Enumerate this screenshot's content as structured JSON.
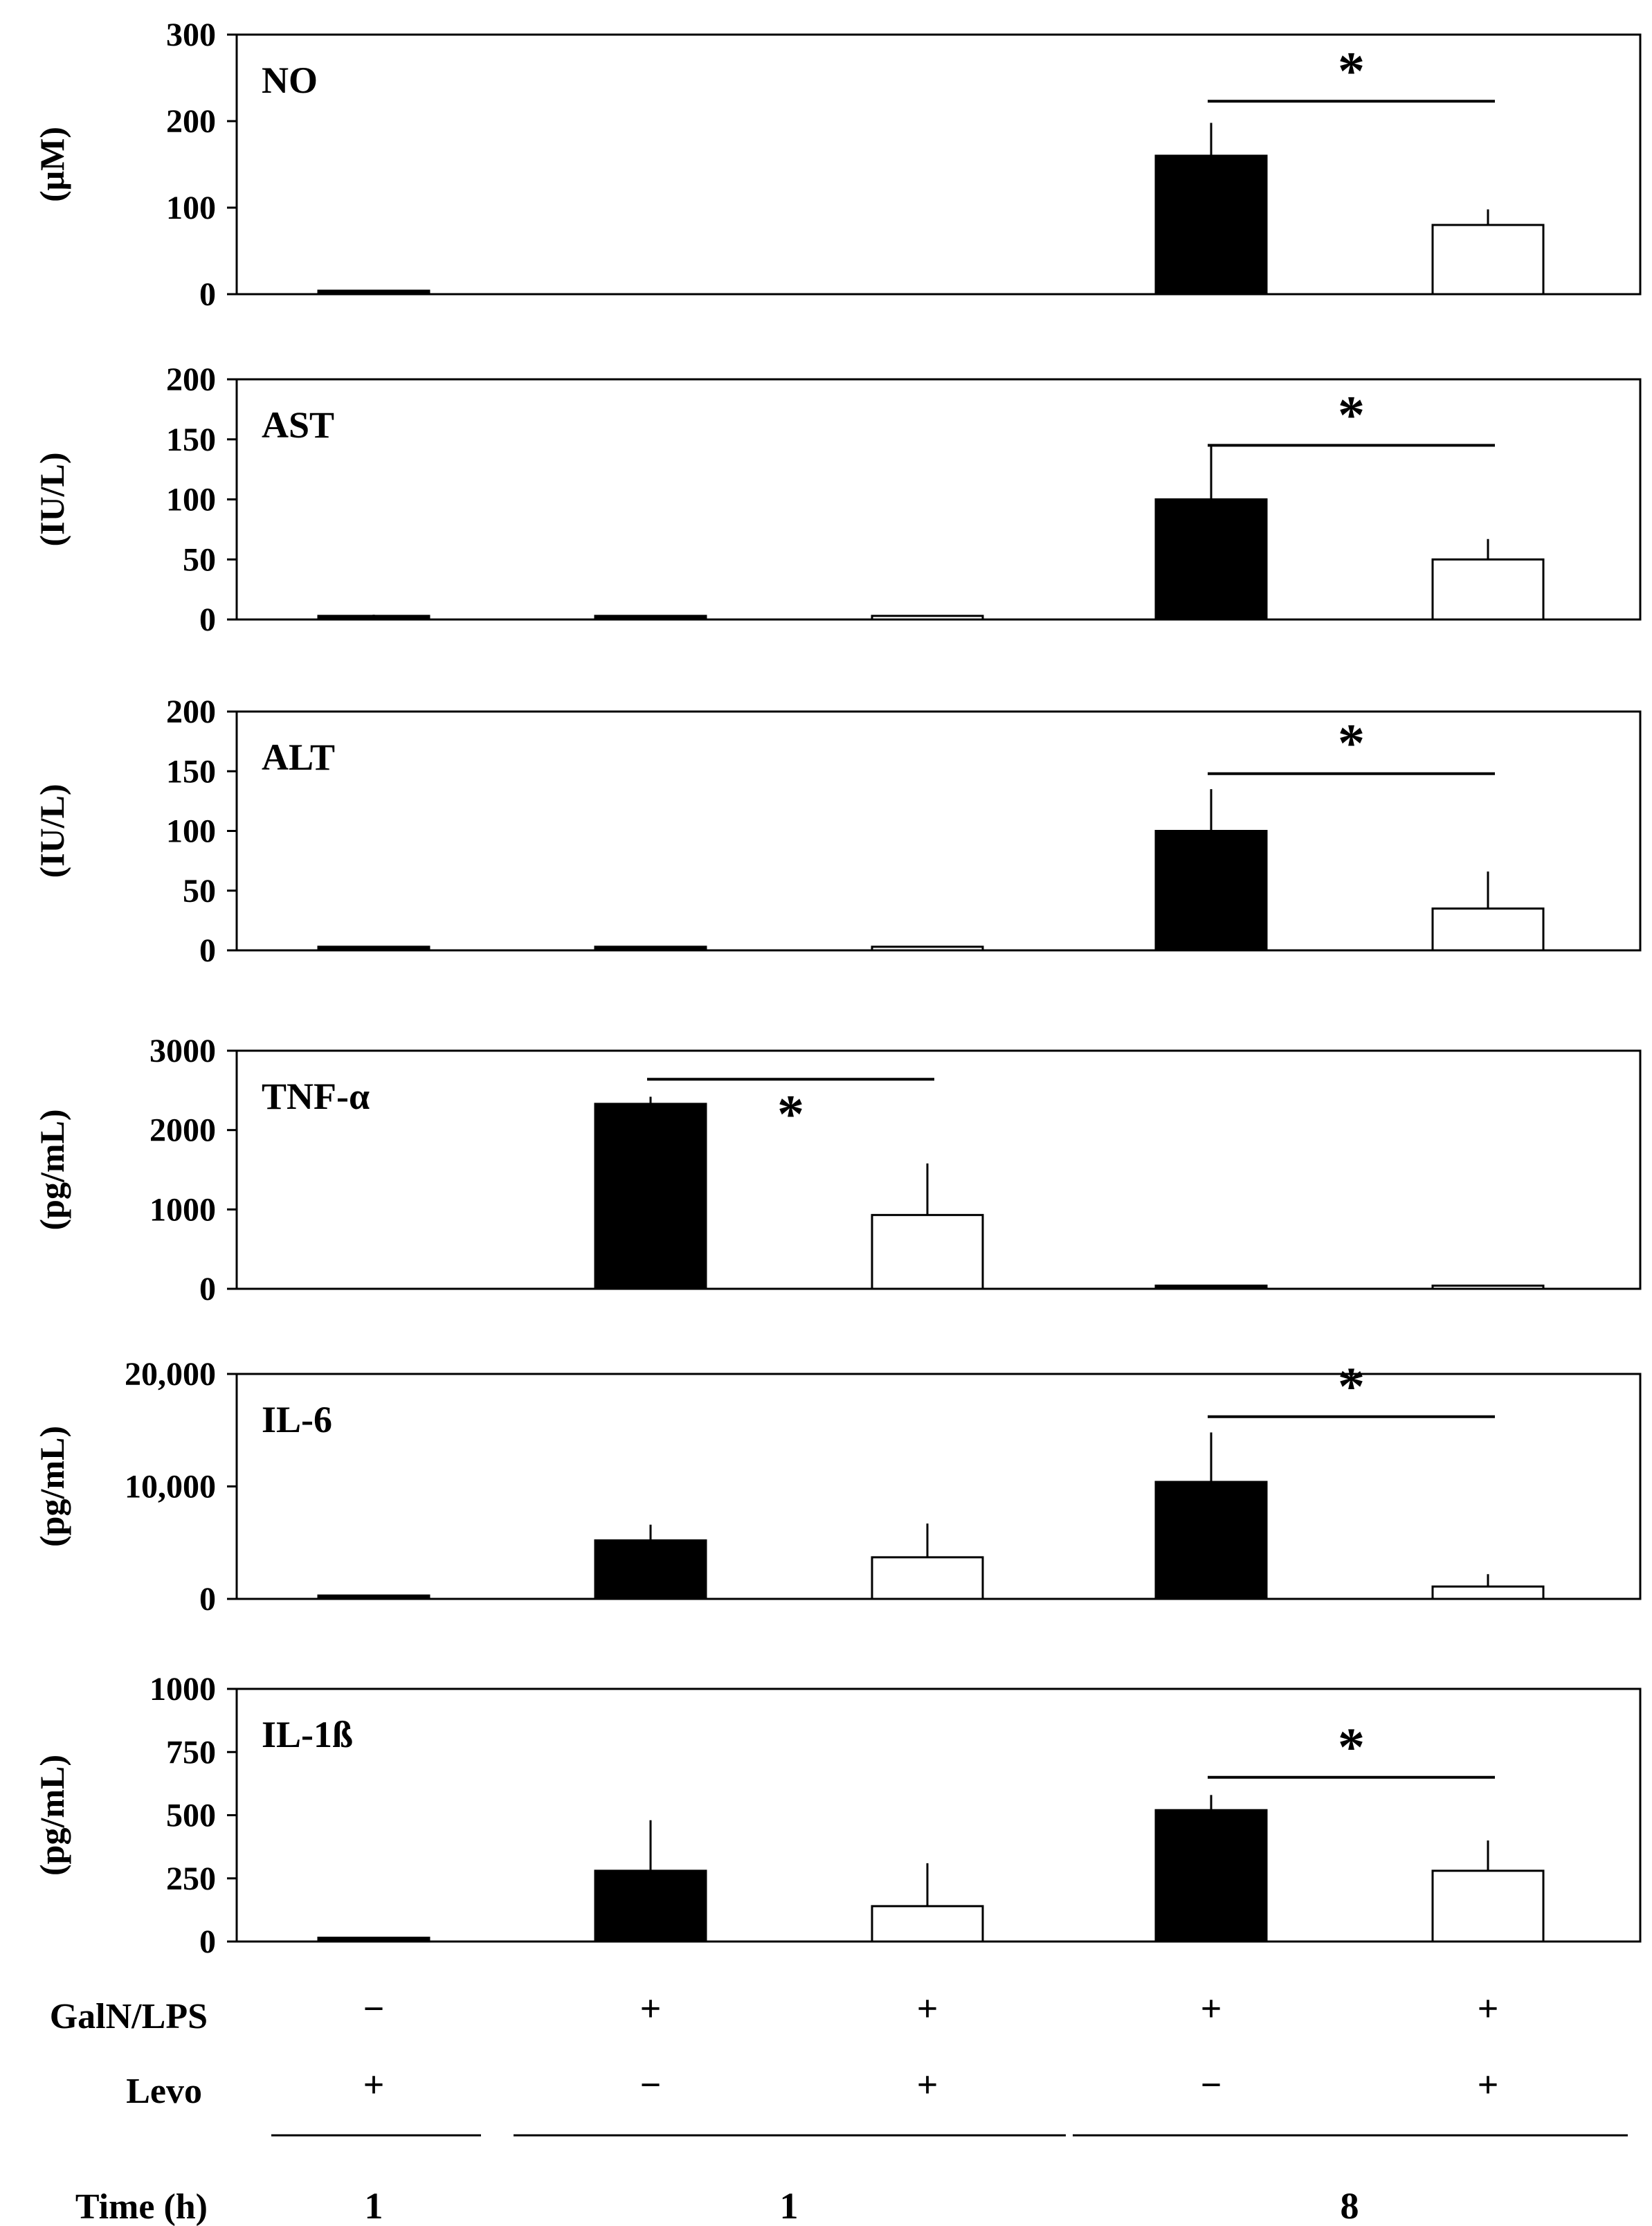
{
  "chart_data": [
    {
      "type": "bar",
      "panel": "NO",
      "ylabel": "(μM)",
      "yticks": [
        "0",
        "100",
        "200",
        "300"
      ],
      "ylim": [
        0,
        300
      ],
      "values": [
        4,
        null,
        null,
        160,
        80
      ],
      "errors": [
        0,
        null,
        null,
        38,
        18
      ],
      "significance": {
        "from": 3,
        "to": 4,
        "label": "*",
        "y": 223,
        "star_above": true
      }
    },
    {
      "type": "bar",
      "panel": "AST",
      "ylabel": "(IU/L)",
      "yticks": [
        "0",
        "50",
        "100",
        "150",
        "200"
      ],
      "ylim": [
        0,
        200
      ],
      "values": [
        3,
        3,
        3,
        100,
        50
      ],
      "errors": [
        1,
        0.5,
        0.5,
        44,
        17
      ],
      "significance": {
        "from": 3,
        "to": 4,
        "label": "*",
        "y": 145,
        "star_above": true
      }
    },
    {
      "type": "bar",
      "panel": "ALT",
      "ylabel": "(IU/L)",
      "yticks": [
        "0",
        "50",
        "100",
        "150",
        "200"
      ],
      "ylim": [
        0,
        200
      ],
      "values": [
        3,
        3,
        3,
        100,
        35
      ],
      "errors": [
        0.5,
        0.5,
        0.5,
        35,
        31
      ],
      "significance": {
        "from": 3,
        "to": 4,
        "label": "*",
        "y": 148,
        "star_above": true
      }
    },
    {
      "type": "bar",
      "panel": "TNF-α",
      "ylabel": "(pg/mL)",
      "yticks": [
        "0",
        "1000",
        "2000",
        "3000"
      ],
      "ylim": [
        0,
        3000
      ],
      "values": [
        null,
        2330,
        930,
        40,
        40
      ],
      "errors": [
        null,
        90,
        650,
        0,
        0
      ],
      "significance": {
        "from": 1,
        "to": 2,
        "label": "*",
        "y": 2640,
        "star_above": false
      }
    },
    {
      "type": "bar",
      "panel": "IL-6",
      "ylabel": "(pg/mL)",
      "yticks": [
        "0",
        "10,000",
        "20,000"
      ],
      "ylim": [
        0,
        20000
      ],
      "values": [
        300,
        5200,
        3700,
        10400,
        1100
      ],
      "errors": [
        0,
        1400,
        3000,
        4400,
        1100
      ],
      "significance": {
        "from": 3,
        "to": 4,
        "label": "*",
        "y": 16200,
        "star_above": true
      }
    },
    {
      "type": "bar",
      "panel": "IL-1ß",
      "ylabel": "(pg/mL)",
      "yticks": [
        "0",
        "250",
        "500",
        "750",
        "1000"
      ],
      "ylim": [
        0,
        1000
      ],
      "values": [
        15,
        280,
        140,
        520,
        280
      ],
      "errors": [
        0,
        200,
        170,
        60,
        120
      ],
      "significance": {
        "from": 3,
        "to": 4,
        "label": "*",
        "y": 650,
        "star_above": true
      }
    }
  ],
  "groups": {
    "fills": [
      "#000000",
      "#000000",
      "#ffffff",
      "#000000",
      "#ffffff"
    ],
    "galn_lps": [
      "−",
      "+",
      "+",
      "+",
      "+"
    ],
    "levo": [
      "+",
      "−",
      "+",
      "−",
      "+"
    ]
  },
  "table": {
    "row_labels": [
      "GalN/LPS",
      "Levo",
      "Time (h)"
    ],
    "time_groups": [
      {
        "label": "1",
        "from": 0,
        "to": 0
      },
      {
        "label": "1",
        "from": 1,
        "to": 2
      },
      {
        "label": "8",
        "from": 3,
        "to": 4
      }
    ]
  }
}
